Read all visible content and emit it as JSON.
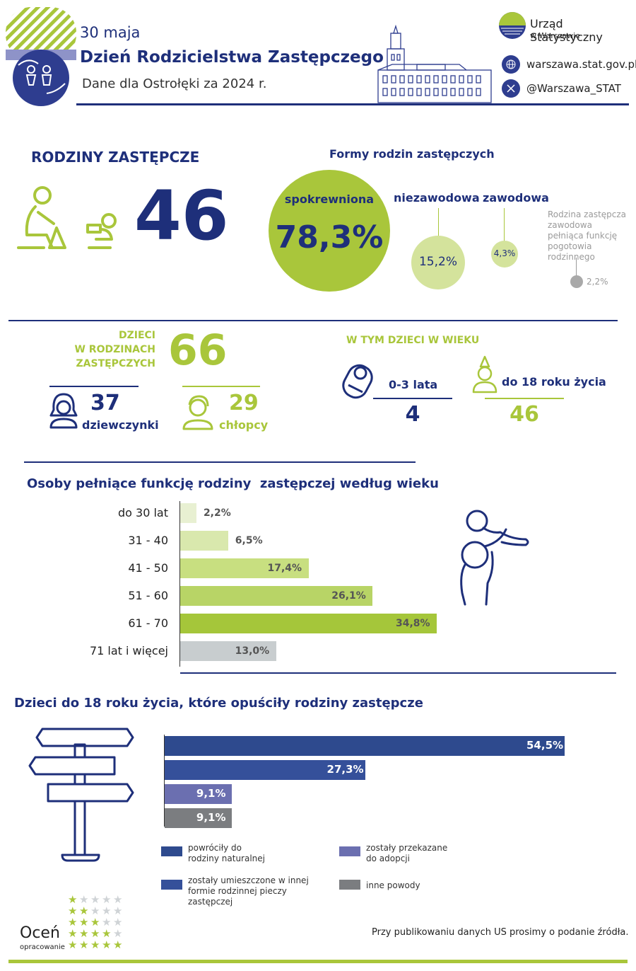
{
  "header": {
    "date": "30 maja",
    "title": "Dzień Rodzicielstwa Zastępczego",
    "subtitle": "Dane dla Ostrołęki za 2024 r.",
    "org_name": "Urząd Statystyczny",
    "org_sub": "w Warszawie",
    "website": "warszawa.stat.gov.pl",
    "twitter": "@Warszawa_STAT"
  },
  "families": {
    "heading": "RODZINY ZASTĘPCZE",
    "count": "46",
    "forms_heading": "Formy rodzin zastępczych",
    "forms": [
      {
        "label": "spokrewniona",
        "value": "78,3%",
        "share": 78.3
      },
      {
        "label": "niezawodowa",
        "value": "15,2%",
        "share": 15.2
      },
      {
        "label": "zawodowa",
        "value": "4,3%",
        "share": 4.3
      },
      {
        "label": "Rodzina zastępcza zawodowa pełniąca funkcję pogotowia rodzinnego",
        "value": "2,2%",
        "share": 2.2
      }
    ]
  },
  "children": {
    "heading_line1": "DZIECI",
    "heading_line2": "W RODZINACH",
    "heading_line3": "ZASTĘPCZYCH",
    "total": "66",
    "girls_count": "37",
    "girls_label": "dziewczynki",
    "boys_count": "29",
    "boys_label": "chłopcy",
    "age_heading": "W TYM DZIECI W WIEKU",
    "age_0_3_label": "0-3 lata",
    "age_0_3_value": "4",
    "age_18_label": "do 18 roku życia",
    "age_18_value": "46"
  },
  "age_chart": {
    "title": "Osoby pełniące funkcję rodziny  zastępczej według wieku",
    "categories": [
      "do 30 lat",
      "31 - 40",
      "41 - 50",
      "51 - 60",
      "61 - 70",
      "71 lat i więcej"
    ],
    "values": [
      2.2,
      6.5,
      17.4,
      26.1,
      34.8,
      13.0
    ],
    "labels": [
      "2,2%",
      "6,5%",
      "17,4%",
      "26,1%",
      "34,8%",
      "13,0%"
    ],
    "colors": [
      "#e8f0d2",
      "#d9e8ad",
      "#c8df80",
      "#b8d466",
      "#a5c63a",
      "#c8cdcf"
    ]
  },
  "left_chart": {
    "title": "Dzieci do 18 roku życia, które opuściły rodziny zastępcze",
    "values": [
      54.5,
      27.3,
      9.1,
      9.1
    ],
    "labels": [
      "54,5%",
      "27,3%",
      "9,1%",
      "9,1%"
    ],
    "colors": [
      "#2e4a8e",
      "#35509a",
      "#6b6fb0",
      "#7b7d80"
    ],
    "legend": [
      {
        "text": "powróciły do rodziny naturalnej",
        "color": "#2e4a8e"
      },
      {
        "text": "zostały przekazane do adopcji",
        "color": "#6b6fb0"
      },
      {
        "text": "zostały umieszczone w innej formie rodzinnej pieczy zastępczej",
        "color": "#35509a"
      },
      {
        "text": "inne powody",
        "color": "#7b7d80"
      }
    ]
  },
  "footer": {
    "rate_main": "Oceń",
    "rate_sub": "opracowanie",
    "note": "Przy publikowaniu danych US prosimy o podanie źródła."
  },
  "chart_data": [
    {
      "type": "bar",
      "title": "Osoby pełniące funkcję rodziny  zastępczej według wieku",
      "categories": [
        "do 30 lat",
        "31 - 40",
        "41 - 50",
        "51 - 60",
        "61 - 70",
        "71 lat i więcej"
      ],
      "values": [
        2.2,
        6.5,
        17.4,
        26.1,
        34.8,
        13.0
      ]
    },
    {
      "type": "bar",
      "title": "Dzieci do 18 roku życia, które opuściły rodziny zastępcze",
      "categories": [
        "powróciły do rodziny naturalnej",
        "zostały umieszczone w innej formie rodzinnej pieczy zastępczej",
        "zostały przekazane do adopcji",
        "inne powody"
      ],
      "values": [
        54.5,
        27.3,
        9.1,
        9.1
      ]
    },
    {
      "type": "pie",
      "title": "Formy rodzin zastępczych",
      "categories": [
        "spokrewniona",
        "niezawodowa",
        "zawodowa",
        "Rodzina zastępcza zawodowa pełniąca funkcję pogotowia rodzinnego"
      ],
      "values": [
        78.3,
        15.2,
        4.3,
        2.2
      ]
    }
  ]
}
